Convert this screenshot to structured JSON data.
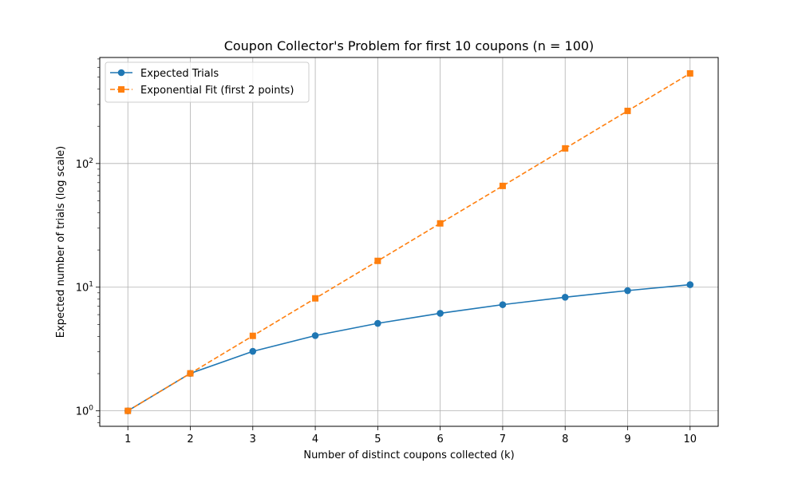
{
  "chart_data": {
    "type": "line",
    "title": "Coupon Collector's Problem for first 10 coupons (n = 100)",
    "xlabel": "Number of distinct coupons collected (k)",
    "ylabel": "Expected number of trials (log scale)",
    "x": [
      1,
      2,
      3,
      4,
      5,
      6,
      7,
      8,
      9,
      10
    ],
    "x_ticks": [
      "1",
      "2",
      "3",
      "4",
      "5",
      "6",
      "7",
      "8",
      "9",
      "10"
    ],
    "xlim": [
      0.55,
      10.45
    ],
    "y_scale": "log",
    "ylim": [
      0.75,
      720
    ],
    "y_ticks": [
      {
        "value": 1,
        "base": "10",
        "exp": "0"
      },
      {
        "value": 10,
        "base": "10",
        "exp": "1"
      },
      {
        "value": 100,
        "base": "10",
        "exp": "2"
      }
    ],
    "grid": true,
    "legend_position": "top-left",
    "series": [
      {
        "name": "Expected Trials",
        "values": [
          1.0,
          2.01,
          3.03,
          4.06,
          5.1,
          6.15,
          7.22,
          8.29,
          9.38,
          10.48
        ],
        "color": "#1f77b4",
        "line_style": "solid",
        "marker": "circle"
      },
      {
        "name": "Exponential Fit (first 2 points)",
        "values": [
          1.0,
          2.01,
          4.04,
          8.12,
          16.32,
          32.8,
          65.9,
          132.5,
          266.3,
          535.3
        ],
        "color": "#ff7f0e",
        "line_style": "dashed",
        "marker": "square"
      }
    ]
  }
}
